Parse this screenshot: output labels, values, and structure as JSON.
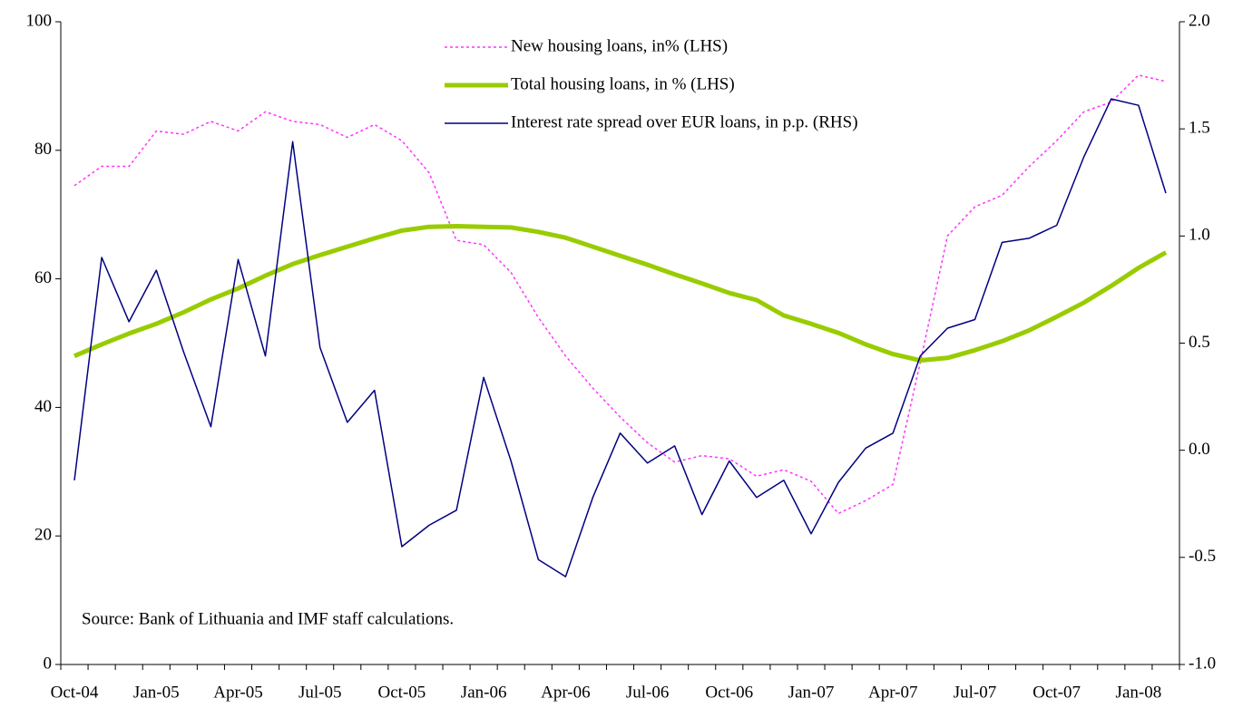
{
  "chart_data": {
    "type": "line",
    "categories": [
      "Oct-04",
      null,
      null,
      "Jan-05",
      null,
      null,
      "Apr-05",
      null,
      null,
      "Jul-05",
      null,
      null,
      "Oct-05",
      null,
      null,
      "Jan-06",
      null,
      null,
      "Apr-06",
      null,
      null,
      "Jul-06",
      null,
      null,
      "Oct-06",
      null,
      null,
      "Jan-07",
      null,
      null,
      "Apr-07",
      null,
      null,
      "Jul-07",
      null,
      null,
      "Oct-07",
      null,
      null,
      "Jan-08",
      null
    ],
    "series": [
      {
        "name": "New housing loans, in% (LHS)",
        "color": "#ff33ff",
        "line_style": "dotted",
        "line_width": 1.5,
        "values": [
          74.5,
          77.5,
          77.5,
          83,
          82.5,
          84.5,
          83,
          86,
          84.5,
          84,
          82,
          84,
          81.5,
          76.5,
          66,
          65.3,
          61,
          54,
          48,
          43,
          38.5,
          34.5,
          31.5,
          32.5,
          32,
          29.3,
          30.3,
          28.5,
          23.5,
          25.5,
          28,
          47,
          66.7,
          71.2,
          73,
          77.5,
          81.5,
          86,
          87.5,
          91.7,
          90.7
        ]
      },
      {
        "name": "Total housing loans, in % (LHS)",
        "color": "#99cc00",
        "line_style": "solid",
        "line_width": 5,
        "values": [
          48,
          49.8,
          51.5,
          53,
          54.8,
          56.8,
          58.5,
          60.5,
          62.3,
          63.7,
          65,
          66.3,
          67.5,
          68.1,
          68.2,
          68.1,
          68,
          67.3,
          66.4,
          65,
          63.6,
          62.2,
          60.7,
          59.3,
          57.8,
          56.7,
          54.3,
          53,
          51.6,
          49.8,
          48.3,
          47.3,
          47.7,
          48.9,
          50.3,
          52,
          54.1,
          56.3,
          58.9,
          61.7,
          64.1
        ]
      },
      {
        "name": "Interest rate spread over EUR loans, in p.p. (RHS)",
        "color": "#000080",
        "line_style": "solid",
        "line_width": 1.5,
        "axis": "y2",
        "values": [
          -0.14,
          0.9,
          0.6,
          0.84,
          0.46,
          0.11,
          0.89,
          0.44,
          1.44,
          0.48,
          0.13,
          0.28,
          -0.45,
          -0.35,
          -0.28,
          0.34,
          -0.05,
          -0.51,
          -0.59,
          -0.22,
          0.08,
          -0.06,
          0.02,
          -0.3,
          -0.05,
          -0.22,
          -0.14,
          -0.39,
          -0.15,
          0.01,
          0.08,
          0.44,
          0.57,
          0.61,
          0.97,
          0.99,
          1.05,
          1.37,
          1.64,
          1.61,
          1.2
        ]
      }
    ],
    "ylim": [
      0,
      100
    ],
    "yticks": [
      0,
      20,
      40,
      60,
      80,
      100
    ],
    "y2lim": [
      -1,
      2
    ],
    "y2ticks": [
      {
        "value": -1,
        "label": "-1.0"
      },
      -0.5,
      {
        "value": 0,
        "label": "0.0"
      },
      0.5,
      {
        "value": 1,
        "label": "1.0"
      },
      1.5,
      {
        "value": 2,
        "label": "2.0"
      }
    ],
    "annotation": "Source: Bank of Lithuania and IMF staff calculations."
  }
}
